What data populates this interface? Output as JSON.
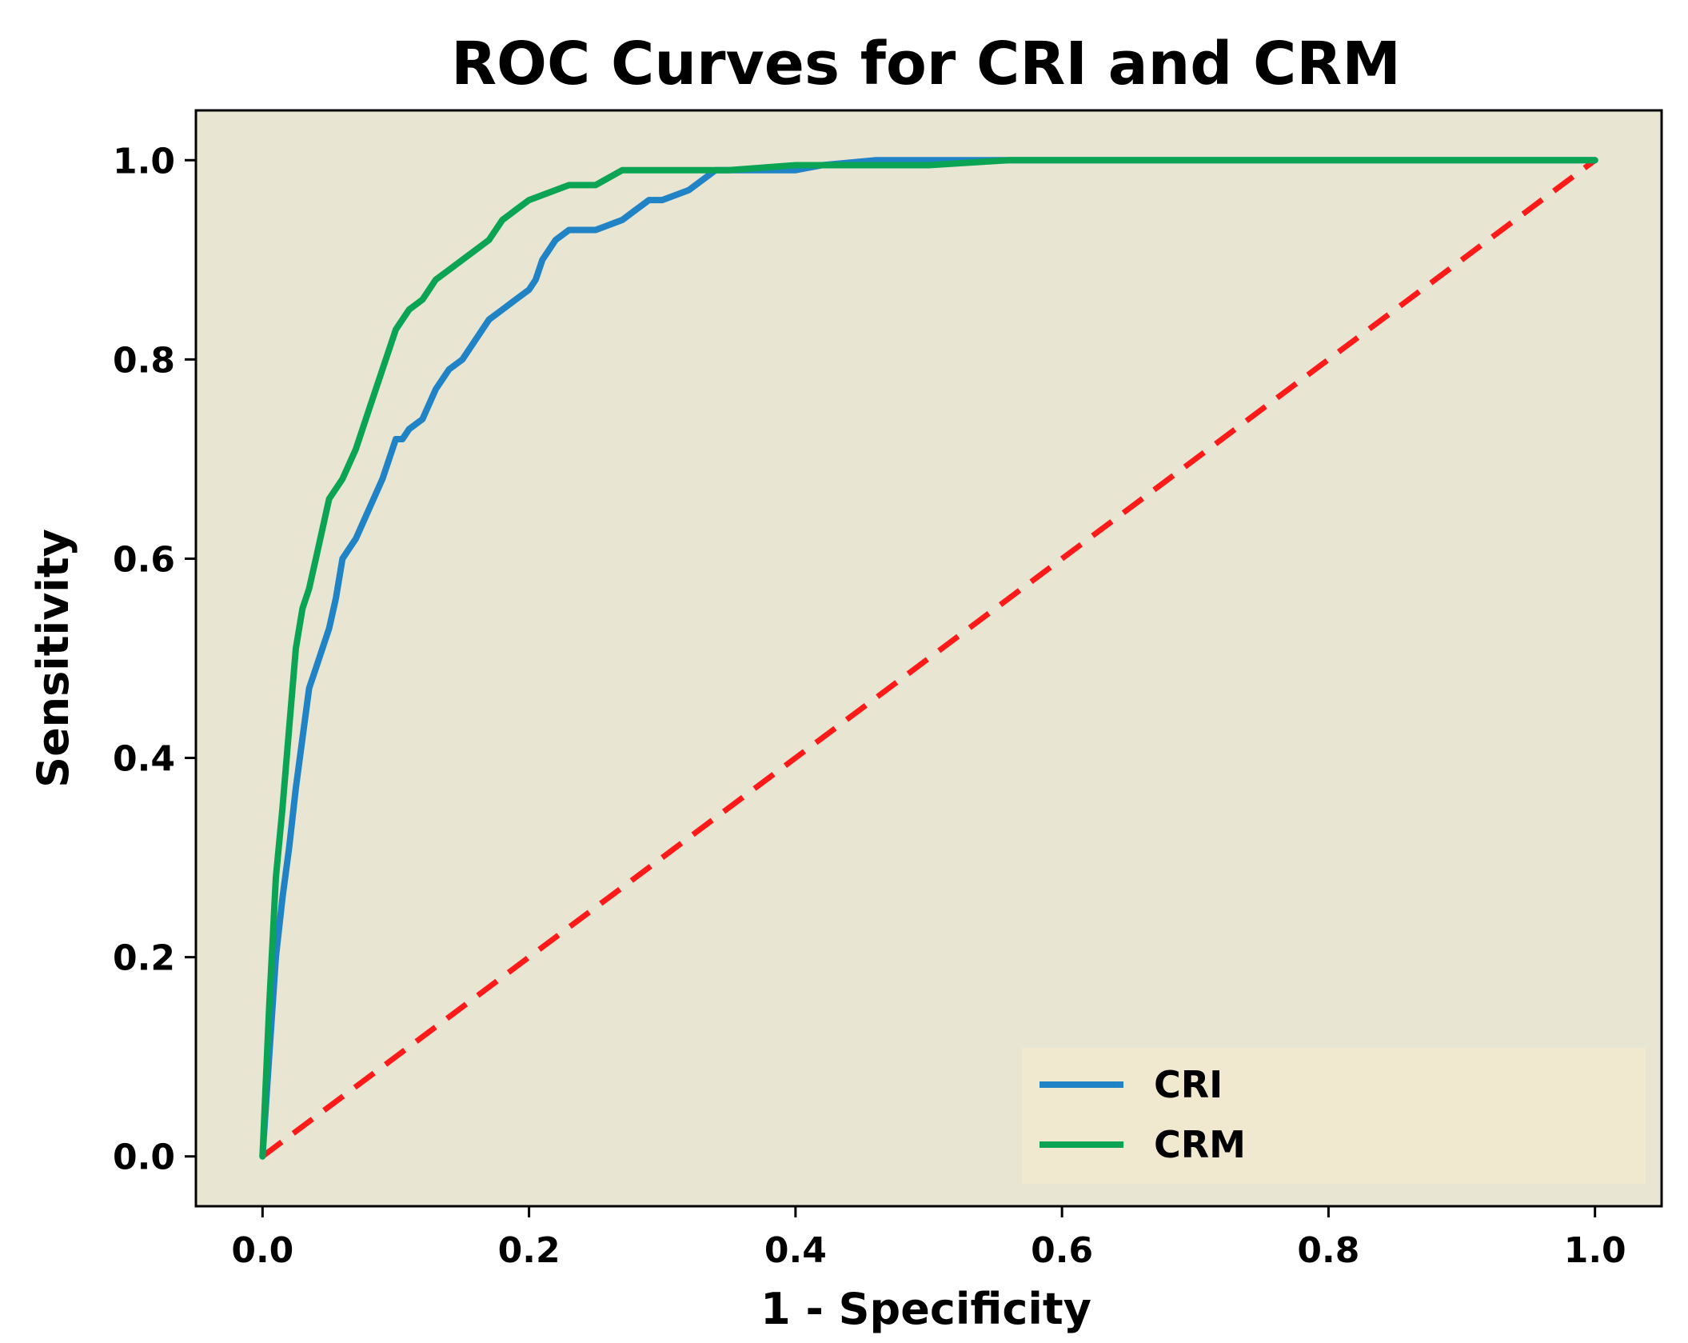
{
  "chart_data": {
    "type": "line",
    "title": "ROC Curves for CRI and CRM",
    "xlabel": "1 - Specificity",
    "ylabel": "Sensitivity",
    "xlim": [
      -0.05,
      1.05
    ],
    "ylim": [
      -0.05,
      1.05
    ],
    "xticks": [
      0.0,
      0.2,
      0.4,
      0.6,
      0.8,
      1.0
    ],
    "yticks": [
      0.0,
      0.2,
      0.4,
      0.6,
      0.8,
      1.0
    ],
    "xtick_labels": [
      "0.0",
      "0.2",
      "0.4",
      "0.6",
      "0.8",
      "1.0"
    ],
    "ytick_labels": [
      "0.0",
      "0.2",
      "0.4",
      "0.6",
      "0.8",
      "1.0"
    ],
    "plot_background": "#e8e5d2",
    "legend_background": "#f1e9cf",
    "legend_position": "lower right",
    "series": [
      {
        "name": "CRI",
        "color": "#1f83c6",
        "x": [
          0.0,
          0.005,
          0.01,
          0.015,
          0.02,
          0.025,
          0.03,
          0.035,
          0.04,
          0.045,
          0.05,
          0.055,
          0.06,
          0.065,
          0.07,
          0.08,
          0.09,
          0.1,
          0.105,
          0.11,
          0.12,
          0.13,
          0.14,
          0.15,
          0.16,
          0.17,
          0.18,
          0.19,
          0.2,
          0.205,
          0.21,
          0.22,
          0.23,
          0.24,
          0.25,
          0.26,
          0.27,
          0.28,
          0.29,
          0.3,
          0.31,
          0.32,
          0.33,
          0.34,
          0.36,
          0.38,
          0.4,
          0.42,
          0.46,
          0.5,
          0.56,
          0.6,
          0.7,
          0.8,
          0.9,
          1.0
        ],
        "y": [
          0.0,
          0.1,
          0.2,
          0.26,
          0.31,
          0.37,
          0.42,
          0.47,
          0.49,
          0.51,
          0.53,
          0.56,
          0.6,
          0.61,
          0.62,
          0.65,
          0.68,
          0.72,
          0.72,
          0.73,
          0.74,
          0.77,
          0.79,
          0.8,
          0.82,
          0.84,
          0.85,
          0.86,
          0.87,
          0.88,
          0.9,
          0.92,
          0.93,
          0.93,
          0.93,
          0.935,
          0.94,
          0.95,
          0.96,
          0.96,
          0.965,
          0.97,
          0.98,
          0.99,
          0.99,
          0.99,
          0.99,
          0.995,
          1.0,
          1.0,
          1.0,
          1.0,
          1.0,
          1.0,
          1.0,
          1.0
        ]
      },
      {
        "name": "CRM",
        "color": "#0aa454",
        "x": [
          0.0,
          0.005,
          0.01,
          0.015,
          0.02,
          0.025,
          0.03,
          0.035,
          0.04,
          0.045,
          0.05,
          0.06,
          0.07,
          0.08,
          0.09,
          0.1,
          0.11,
          0.12,
          0.13,
          0.14,
          0.15,
          0.16,
          0.17,
          0.18,
          0.19,
          0.2,
          0.21,
          0.22,
          0.23,
          0.25,
          0.27,
          0.28,
          0.3,
          0.35,
          0.4,
          0.5,
          0.56,
          0.6,
          0.7,
          0.8,
          0.9,
          1.0
        ],
        "y": [
          0.0,
          0.15,
          0.28,
          0.35,
          0.43,
          0.51,
          0.55,
          0.57,
          0.6,
          0.63,
          0.66,
          0.68,
          0.71,
          0.75,
          0.79,
          0.83,
          0.85,
          0.86,
          0.88,
          0.89,
          0.9,
          0.91,
          0.92,
          0.94,
          0.95,
          0.96,
          0.965,
          0.97,
          0.975,
          0.975,
          0.99,
          0.99,
          0.99,
          0.99,
          0.995,
          0.995,
          1.0,
          1.0,
          1.0,
          1.0,
          1.0,
          1.0
        ]
      },
      {
        "name": "chance",
        "color": "#ff1a1a",
        "dashed": true,
        "in_legend": false,
        "x": [
          0.0,
          1.0
        ],
        "y": [
          0.0,
          1.0
        ]
      }
    ]
  }
}
